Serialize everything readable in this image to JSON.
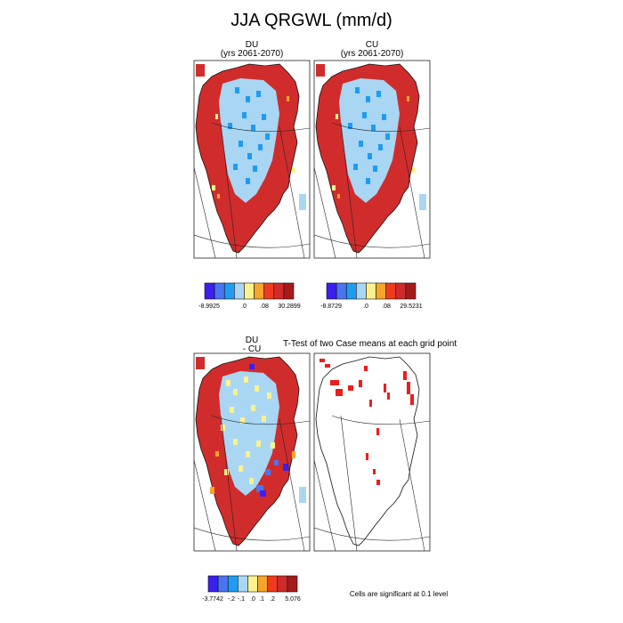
{
  "title": "JJA QRGWL (mm/d)",
  "palette": [
    "#3a1ff0",
    "#4a75ee",
    "#1f9bf2",
    "#a9d6f3",
    "#fdf28c",
    "#f7a42a",
    "#ef3a1f",
    "#d02a2a",
    "#a51a1a"
  ],
  "land_color": "#d12c2c",
  "panels": [
    {
      "id": "du",
      "title_line1": "DU",
      "title_line2": "(yrs 2061-2070)"
    },
    {
      "id": "cu",
      "title_line1": "CU",
      "title_line2": "(yrs 2061-2070)"
    },
    {
      "id": "diff",
      "title_line1": "DU",
      "title_line2": "- CU"
    },
    {
      "id": "ttest",
      "title_line1": "T-Test of two Case means at each grid point",
      "title_line2": ""
    }
  ],
  "colorbars": [
    {
      "id": "du",
      "labels": [
        "-8.9925",
        ".0",
        ".08",
        "30.2899"
      ]
    },
    {
      "id": "cu",
      "labels": [
        "-8.8729",
        ".0",
        ".08",
        "29.5231"
      ]
    },
    {
      "id": "diff",
      "labels": [
        "-3.7742",
        "-.2",
        "-.1",
        ".0",
        ".1",
        ".2",
        "5.076"
      ]
    }
  ],
  "significance_note": "Cells are significant at 0.1 level",
  "chart_data": [
    {
      "type": "heatmap",
      "title": "DU (yrs 2061-2070)",
      "colorbar_labels": [
        "-8.9925",
        ".0",
        ".08",
        "30.2899"
      ],
      "range": [
        -8.9925,
        30.2899
      ]
    },
    {
      "type": "heatmap",
      "title": "CU (yrs 2061-2070)",
      "colorbar_labels": [
        "-8.8729",
        ".0",
        ".08",
        "29.5231"
      ],
      "range": [
        -8.8729,
        29.5231
      ]
    },
    {
      "type": "heatmap",
      "title": "DU - CU",
      "colorbar_labels": [
        "-3.7742",
        "-.2",
        "-.1",
        ".0",
        ".1",
        ".2",
        "5.076"
      ],
      "range": [
        -3.7742,
        5.076
      ]
    },
    {
      "type": "heatmap",
      "title": "T-Test of two Case means at each grid point",
      "note": "Cells are significant at 0.1 level"
    }
  ]
}
